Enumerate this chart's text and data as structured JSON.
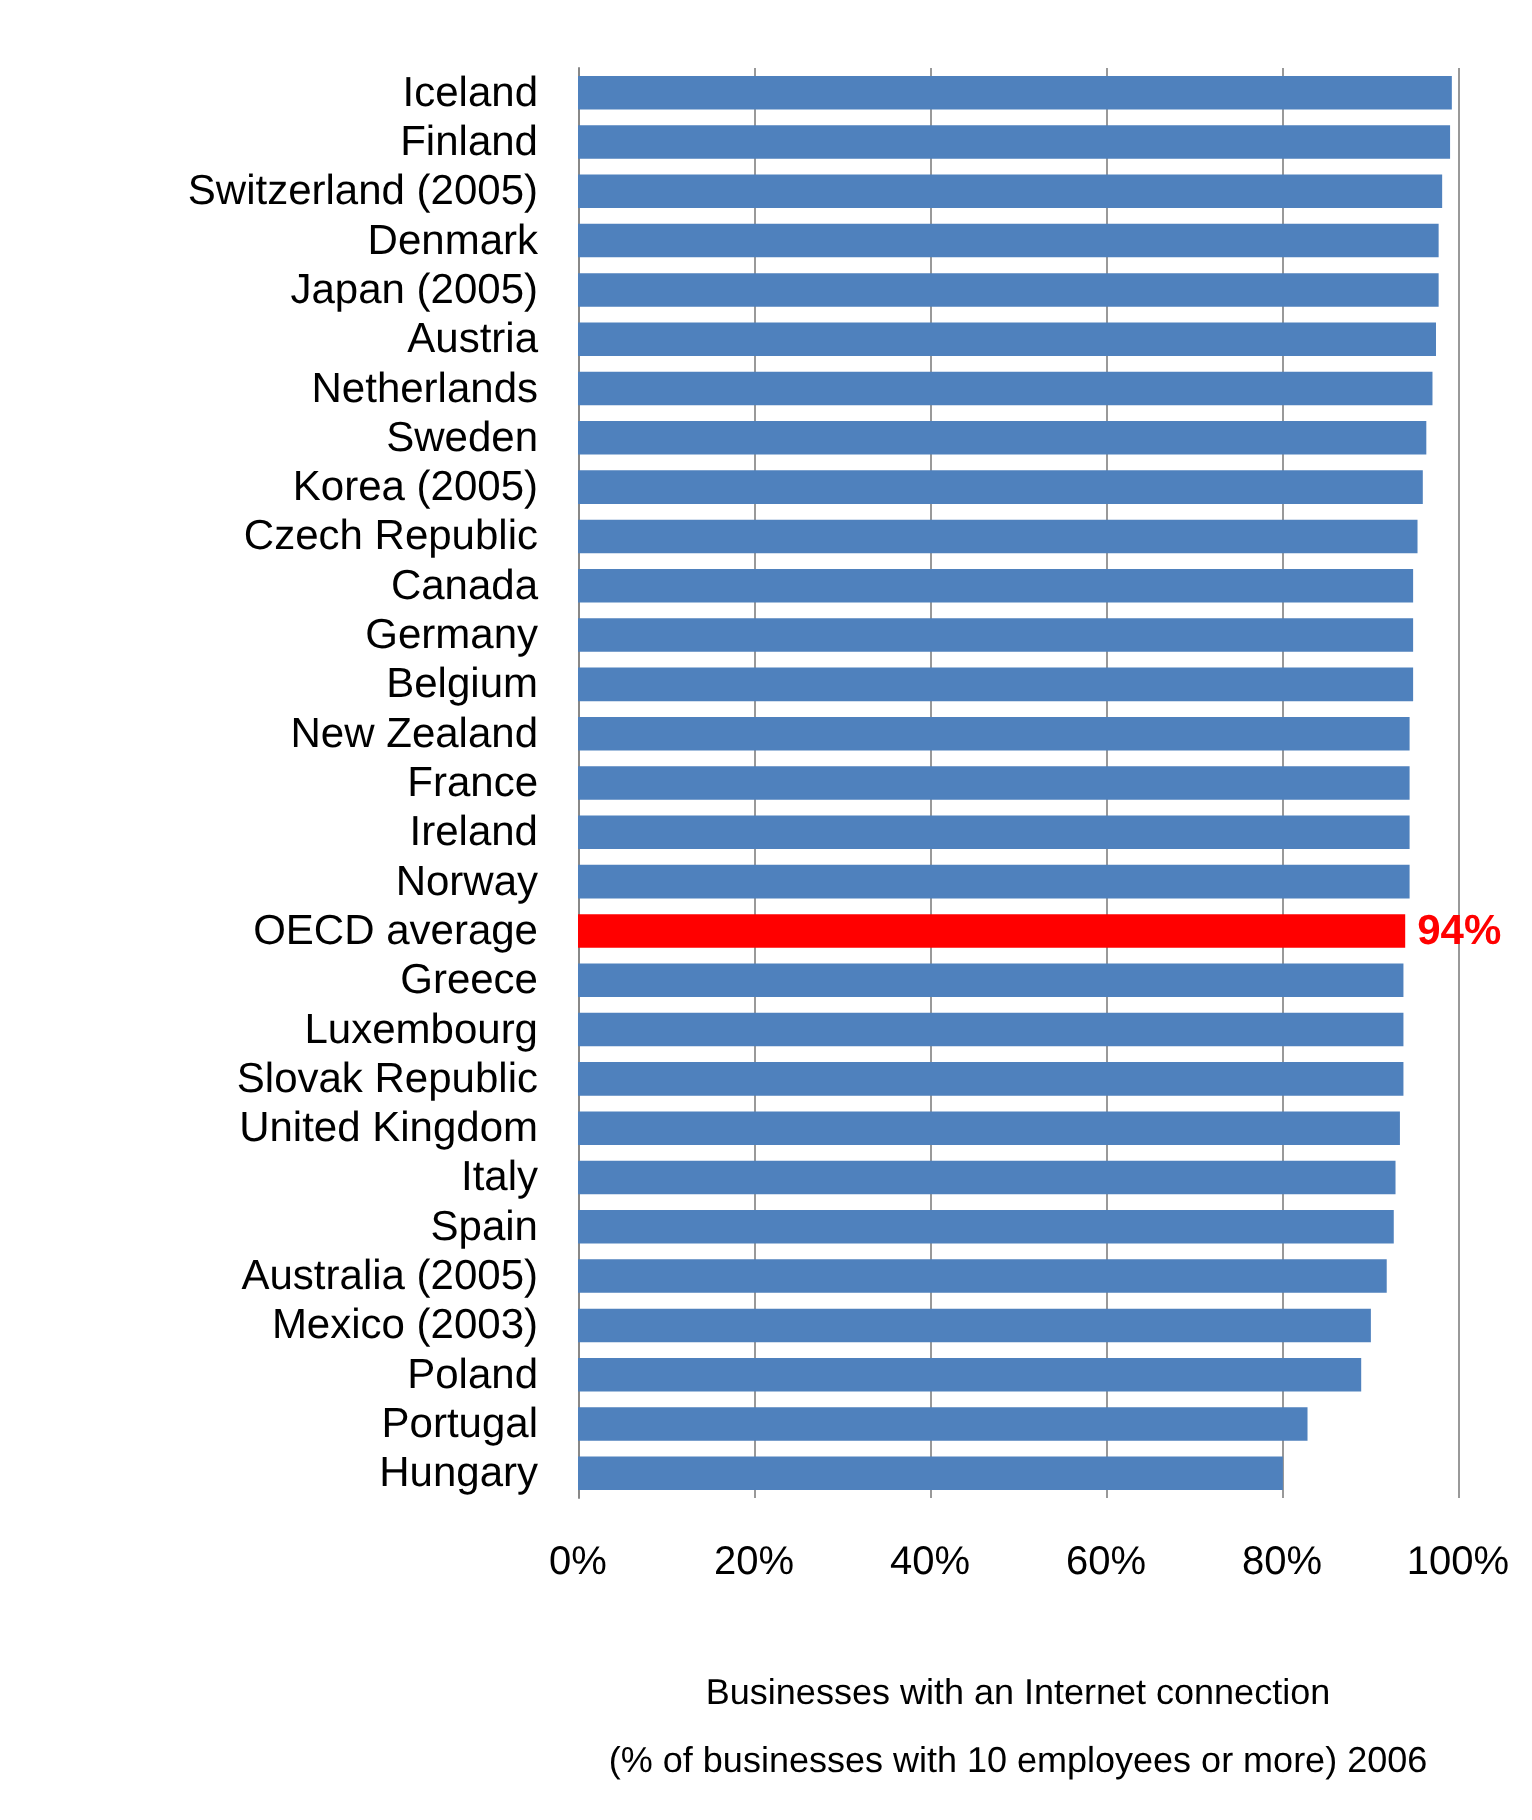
{
  "chart_data": {
    "type": "bar",
    "orientation": "horizontal",
    "xlabel": "Businesses with an Internet connection\n(% of businesses with 10 employees or more) 2006",
    "categories": [
      "Iceland",
      "Finland",
      "Switzerland (2005)",
      "Denmark",
      "Japan (2005)",
      "Austria",
      "Netherlands",
      "Sweden",
      "Korea (2005)",
      "Czech Republic",
      "Canada",
      "Germany",
      "Belgium",
      "New Zealand",
      "France",
      "Ireland",
      "Norway",
      "OECD average",
      "Greece",
      "Luxembourg",
      "Slovak Republic",
      "United Kingdom",
      "Italy",
      "Spain",
      "Australia (2005)",
      "Mexico (2003)",
      "Poland",
      "Portugal",
      "Hungary"
    ],
    "values": [
      99.3,
      99.1,
      98.2,
      97.8,
      97.8,
      97.5,
      97.1,
      96.4,
      96,
      95.4,
      94.9,
      94.9,
      94.9,
      94.5,
      94.5,
      94.5,
      94.5,
      94,
      93.8,
      93.8,
      93.8,
      93.4,
      92.9,
      92.7,
      91.9,
      90.1,
      89,
      82.9,
      80.1
    ],
    "colors": [
      "#4f81bd",
      "#4f81bd",
      "#4f81bd",
      "#4f81bd",
      "#4f81bd",
      "#4f81bd",
      "#4f81bd",
      "#4f81bd",
      "#4f81bd",
      "#4f81bd",
      "#4f81bd",
      "#4f81bd",
      "#4f81bd",
      "#4f81bd",
      "#4f81bd",
      "#4f81bd",
      "#4f81bd",
      "#ff0000",
      "#4f81bd",
      "#4f81bd",
      "#4f81bd",
      "#4f81bd",
      "#4f81bd",
      "#4f81bd",
      "#4f81bd",
      "#4f81bd",
      "#4f81bd",
      "#4f81bd",
      "#4f81bd"
    ],
    "value_labels": [
      null,
      null,
      null,
      null,
      null,
      null,
      null,
      null,
      null,
      null,
      null,
      null,
      null,
      null,
      null,
      null,
      null,
      "94%",
      null,
      null,
      null,
      null,
      null,
      null,
      null,
      null,
      null,
      null,
      null
    ],
    "xlim": [
      0,
      100
    ],
    "xticks": [
      {
        "value": 0,
        "label": "0%"
      },
      {
        "value": 20,
        "label": "20%"
      },
      {
        "value": 40,
        "label": "40%"
      },
      {
        "value": 60,
        "label": "60%"
      },
      {
        "value": 80,
        "label": "80%"
      },
      {
        "value": 100,
        "label": "100%"
      }
    ],
    "grid": "x"
  }
}
